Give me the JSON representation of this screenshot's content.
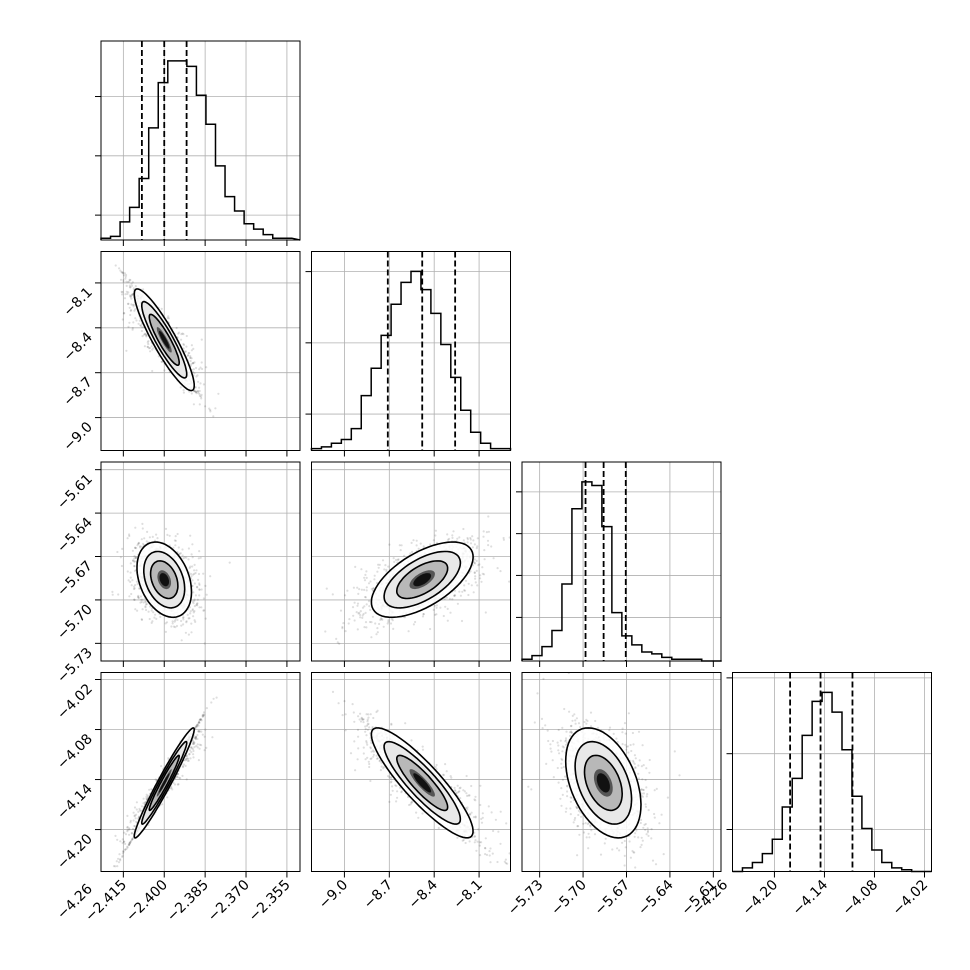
{
  "chart_data": {
    "type": "corner",
    "variables": [
      {
        "ticks": [
          -2.415,
          -2.4,
          -2.385,
          -2.37,
          -2.355
        ],
        "tick_labels": [
          "−2.415",
          "−2.400",
          "−2.385",
          "−2.370",
          "−2.355"
        ],
        "range": [
          -2.4232,
          -2.3502
        ],
        "quantiles": [
          -2.4082,
          -2.4,
          -2.3918
        ],
        "hist": {
          "start": -2.4232,
          "bin_width": 0.0035,
          "counts": [
            1,
            2,
            10,
            18,
            34,
            62,
            87,
            99,
            99,
            96,
            80,
            64,
            41,
            24,
            16,
            9,
            6,
            3,
            1,
            1
          ]
        },
        "hist_ticks": [
          0.125,
          0.423,
          0.721
        ]
      },
      {
        "ticks": [
          -9.0,
          -8.7,
          -8.4,
          -8.1
        ],
        "tick_labels": [
          "−9.0",
          "−8.7",
          "−8.4",
          "−8.1"
        ],
        "range": [
          -9.22,
          -7.89
        ],
        "quantiles": [
          -8.71,
          -8.48,
          -8.26
        ],
        "hist": {
          "start": -9.22,
          "bin_width": 0.0665,
          "counts": [
            1,
            2,
            4,
            6,
            12,
            30,
            45,
            63,
            80,
            92,
            98,
            88,
            75,
            58,
            40,
            22,
            10,
            4,
            1,
            1
          ]
        },
        "hist_ticks": [
          0.183,
          0.541,
          0.899
        ]
      },
      {
        "ticks": [
          -5.73,
          -5.7,
          -5.67,
          -5.64,
          -5.61
        ],
        "tick_labels": [
          "−5.73",
          "−5.70",
          "−5.67",
          "−5.64",
          "−5.61"
        ],
        "range": [
          -5.7422,
          -5.6047
        ],
        "quantiles": [
          -5.6983,
          -5.6858,
          -5.6705
        ],
        "hist": {
          "start": -5.7422,
          "bin_width": 0.0069,
          "counts": [
            1,
            3,
            8,
            17,
            43,
            85,
            100,
            98,
            75,
            27,
            14,
            9,
            5,
            4,
            2,
            1,
            1,
            1,
            0,
            0
          ]
        },
        "hist_ticks": [
          0.219,
          0.43,
          0.64,
          0.85
        ]
      },
      {
        "ticks": [
          -4.26,
          -4.2,
          -4.14,
          -4.08,
          -4.02
        ],
        "tick_labels": [
          "−4.26",
          "−4.20",
          "−4.14",
          "−4.08",
          "−4.02"
        ],
        "range": [
          -4.2503,
          -4.0116
        ],
        "quantiles": [
          -4.1812,
          -4.1447,
          -4.1064
        ],
        "hist": {
          "start": -4.2503,
          "bin_width": 0.01194,
          "counts": [
            0,
            2,
            5,
            10,
            18,
            36,
            52,
            76,
            95,
            100,
            89,
            68,
            42,
            24,
            12,
            5,
            2,
            1,
            0,
            0
          ]
        },
        "hist_ticks": [
          0.211,
          0.592,
          0.973
        ]
      }
    ],
    "pairs": [
      {
        "x": 0,
        "y": 1,
        "mean": [
          -2.4,
          -8.48
        ],
        "sd": [
          0.0055,
          0.17
        ],
        "rho": -0.9
      },
      {
        "x": 0,
        "y": 2,
        "mean": [
          -2.4,
          -5.686
        ],
        "sd": [
          0.005,
          0.013
        ],
        "rho": -0.32
      },
      {
        "x": 1,
        "y": 2,
        "mean": [
          -8.48,
          -5.686
        ],
        "sd": [
          0.17,
          0.013
        ],
        "rho": 0.6
      },
      {
        "x": 0,
        "y": 3,
        "mean": [
          -2.4,
          -4.144
        ],
        "sd": [
          0.0055,
          0.033
        ],
        "rho": 0.97
      },
      {
        "x": 1,
        "y": 3,
        "mean": [
          -8.48,
          -4.144
        ],
        "sd": [
          0.17,
          0.033
        ],
        "rho": -0.88
      },
      {
        "x": 2,
        "y": 3,
        "mean": [
          -5.686,
          -4.144
        ],
        "sd": [
          0.013,
          0.033
        ],
        "rho": -0.4
      }
    ],
    "contour_levels_sigma": [
      0.5,
      1.0,
      1.5,
      2.0
    ],
    "grid": true,
    "colors": {
      "line": "#000000",
      "grid": "#b0b0b0",
      "points": "#000000"
    }
  }
}
